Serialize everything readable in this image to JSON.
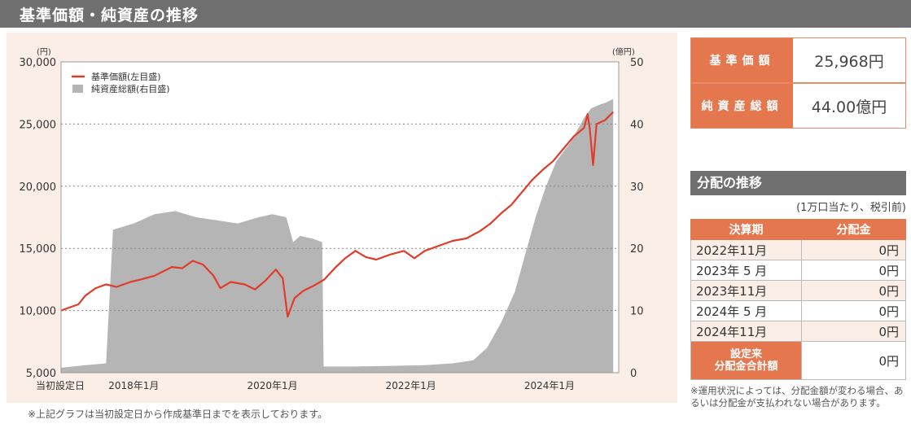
{
  "header": {
    "title": "基準価額・純資産の推移"
  },
  "chart_data": {
    "type": "line",
    "left_unit": "(円)",
    "right_unit": "(億円)",
    "y_left": {
      "min": 5000,
      "max": 30000,
      "ticks": [
        5000,
        10000,
        15000,
        20000,
        25000,
        30000
      ],
      "tick_labels": [
        "5,000",
        "10,000",
        "15,000",
        "20,000",
        "25,000",
        "30,000"
      ]
    },
    "y_right": {
      "min": 0,
      "max": 50,
      "ticks": [
        0,
        10,
        20,
        30,
        40,
        50
      ],
      "tick_labels": [
        "0",
        "10",
        "20",
        "30",
        "40",
        "50"
      ]
    },
    "x": {
      "start": "2016-12",
      "end": "2025-01"
    },
    "x_tick_labels": [
      {
        "label": "当初設定日",
        "date": 2016.95
      },
      {
        "label": "2018年1月",
        "date": 2018.0
      },
      {
        "label": "2020年1月",
        "date": 2020.0
      },
      {
        "label": "2022年1月",
        "date": 2022.0
      },
      {
        "label": "2024年1月",
        "date": 2024.0
      }
    ],
    "grid": "dotted-horizontal",
    "legend": [
      {
        "name": "基準価額(左目盛)",
        "color": "#e03c2b",
        "kind": "line"
      },
      {
        "name": "純資産総額(右目盛)",
        "color": "#b5b5b5",
        "kind": "area"
      }
    ],
    "series": [
      {
        "name": "基準価額(左目盛)",
        "axis": "left",
        "color": "#e03c2b",
        "points": [
          [
            2016.95,
            10000
          ],
          [
            2017.05,
            10200
          ],
          [
            2017.2,
            10500
          ],
          [
            2017.3,
            11200
          ],
          [
            2017.45,
            11800
          ],
          [
            2017.6,
            12100
          ],
          [
            2017.75,
            11900
          ],
          [
            2017.95,
            12300
          ],
          [
            2018.1,
            12500
          ],
          [
            2018.3,
            12800
          ],
          [
            2018.55,
            13500
          ],
          [
            2018.7,
            13400
          ],
          [
            2018.85,
            14000
          ],
          [
            2019.0,
            13700
          ],
          [
            2019.15,
            12800
          ],
          [
            2019.25,
            11800
          ],
          [
            2019.4,
            12300
          ],
          [
            2019.6,
            12100
          ],
          [
            2019.75,
            11700
          ],
          [
            2019.9,
            12400
          ],
          [
            2020.05,
            13300
          ],
          [
            2020.15,
            12600
          ],
          [
            2020.22,
            9500
          ],
          [
            2020.32,
            11000
          ],
          [
            2020.45,
            11600
          ],
          [
            2020.6,
            12000
          ],
          [
            2020.75,
            12500
          ],
          [
            2020.9,
            13400
          ],
          [
            2021.05,
            14200
          ],
          [
            2021.2,
            14800
          ],
          [
            2021.35,
            14300
          ],
          [
            2021.5,
            14100
          ],
          [
            2021.7,
            14500
          ],
          [
            2021.9,
            14800
          ],
          [
            2022.05,
            14200
          ],
          [
            2022.2,
            14800
          ],
          [
            2022.4,
            15200
          ],
          [
            2022.6,
            15600
          ],
          [
            2022.8,
            15800
          ],
          [
            2023.0,
            16400
          ],
          [
            2023.15,
            17000
          ],
          [
            2023.3,
            17800
          ],
          [
            2023.45,
            18500
          ],
          [
            2023.6,
            19500
          ],
          [
            2023.75,
            20500
          ],
          [
            2023.9,
            21300
          ],
          [
            2024.05,
            22000
          ],
          [
            2024.2,
            23000
          ],
          [
            2024.35,
            24000
          ],
          [
            2024.5,
            24700
          ],
          [
            2024.55,
            25800
          ],
          [
            2024.58,
            24700
          ],
          [
            2024.63,
            21700
          ],
          [
            2024.68,
            25000
          ],
          [
            2024.8,
            25300
          ],
          [
            2024.92,
            25968
          ]
        ]
      },
      {
        "name": "純資産総額(右目盛)",
        "axis": "right",
        "color": "#b5b5b5",
        "points": [
          [
            2016.95,
            0.8
          ],
          [
            2017.3,
            1.2
          ],
          [
            2017.6,
            1.5
          ],
          [
            2017.7,
            23.0
          ],
          [
            2018.0,
            24.0
          ],
          [
            2018.3,
            25.5
          ],
          [
            2018.6,
            26.0
          ],
          [
            2018.9,
            25.0
          ],
          [
            2019.2,
            24.5
          ],
          [
            2019.5,
            24.0
          ],
          [
            2019.8,
            25.0
          ],
          [
            2020.0,
            25.5
          ],
          [
            2020.2,
            25.0
          ],
          [
            2020.3,
            21.0
          ],
          [
            2020.4,
            22.0
          ],
          [
            2020.6,
            21.5
          ],
          [
            2020.72,
            21.0
          ],
          [
            2020.74,
            1.0
          ],
          [
            2021.2,
            1.0
          ],
          [
            2021.7,
            1.1
          ],
          [
            2022.2,
            1.2
          ],
          [
            2022.6,
            1.5
          ],
          [
            2022.9,
            2.0
          ],
          [
            2023.1,
            4.0
          ],
          [
            2023.3,
            8.0
          ],
          [
            2023.5,
            13.0
          ],
          [
            2023.65,
            19.0
          ],
          [
            2023.8,
            25.0
          ],
          [
            2023.95,
            30.0
          ],
          [
            2024.1,
            34.0
          ],
          [
            2024.3,
            37.0
          ],
          [
            2024.5,
            41.0
          ],
          [
            2024.6,
            42.5
          ],
          [
            2024.7,
            43.0
          ],
          [
            2024.82,
            43.5
          ],
          [
            2024.92,
            44.0
          ]
        ]
      }
    ]
  },
  "footnote": "※上記グラフは当初設定日から作成基準日までを表示しております。",
  "summary": {
    "nav_label": "基準価額",
    "nav_value": "25,968円",
    "net_assets_label": "純資産総額",
    "net_assets_value": "44.00億円"
  },
  "distribution": {
    "title": "分配の推移",
    "subtitle": "(1万口当たり、税引前)",
    "col_period": "決算期",
    "col_amount": "分配金",
    "rows": [
      {
        "period": "2022年11月",
        "amount": "0円"
      },
      {
        "period": "2023年 5 月",
        "amount": "0円"
      },
      {
        "period": "2023年11月",
        "amount": "0円"
      },
      {
        "period": "2024年 5 月",
        "amount": "0円"
      },
      {
        "period": "2024年11月",
        "amount": "0円"
      }
    ],
    "total_label_1": "設定来",
    "total_label_2": "分配金合計額",
    "total_amount": "0円",
    "note": "※運用状況によっては、分配金額が変わる場合、あるいは分配金が支払われない場合があります。"
  }
}
